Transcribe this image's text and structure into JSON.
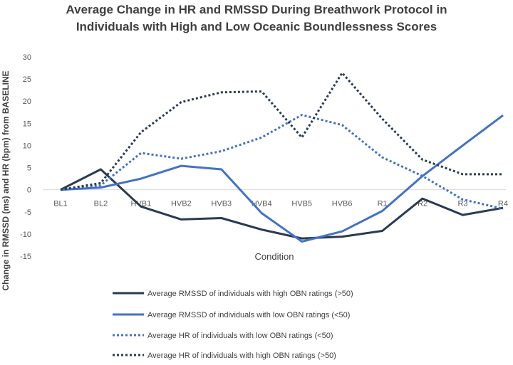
{
  "chart_data": {
    "type": "line",
    "title_line1": "Average Change in HR and RMSSD During Breathwork Protocol in",
    "title_line2": "Individuals with High and Low Oceanic Boundlessness Scores",
    "xlabel": "Condition",
    "ylabel": "Change in RMSSD (ms) and HR (bpm) from BASELINE",
    "ylim": [
      -15,
      30
    ],
    "yticks": [
      -15,
      -10,
      -5,
      0,
      5,
      10,
      15,
      20,
      25,
      30
    ],
    "grid": false,
    "legend_position": "bottom",
    "categories": [
      "BL1",
      "BL2",
      "HVB1",
      "HVB2",
      "HVB3",
      "HVB4",
      "HVB5",
      "HVB6",
      "R1",
      "R2",
      "R3",
      "R4"
    ],
    "series": [
      {
        "name": "Average RMSSD of individuals with high OBN ratings (>50)",
        "color": "#2a3a52",
        "style": "solid",
        "values": [
          0,
          4.6,
          -3.8,
          -6.7,
          -6.4,
          -9,
          -11,
          -10.6,
          -9.3,
          -2,
          -5.7,
          -4.1
        ]
      },
      {
        "name": "Average RMSSD of individuals with low OBN ratings (<50)",
        "color": "#4472c4",
        "style": "solid",
        "values": [
          0,
          0.5,
          2.5,
          5.4,
          4.6,
          -5.3,
          -11.7,
          -9.4,
          -4.8,
          3.1,
          10,
          16.8
        ]
      },
      {
        "name": "Average HR of individuals with low OBN ratings (<50)",
        "color": "#4472c4",
        "style": "dotted",
        "values": [
          0,
          1,
          8.3,
          7,
          8.7,
          11.8,
          16.9,
          14.6,
          7.3,
          3.1,
          -2.2,
          -4.3
        ]
      },
      {
        "name": "Average HR of individuals with high OBN ratings (>50)",
        "color": "#2a3a52",
        "style": "dotted",
        "values": [
          0,
          1.5,
          13,
          19.8,
          22,
          22.2,
          11.8,
          26.4,
          16,
          6.8,
          3.5,
          3.5
        ]
      }
    ]
  }
}
